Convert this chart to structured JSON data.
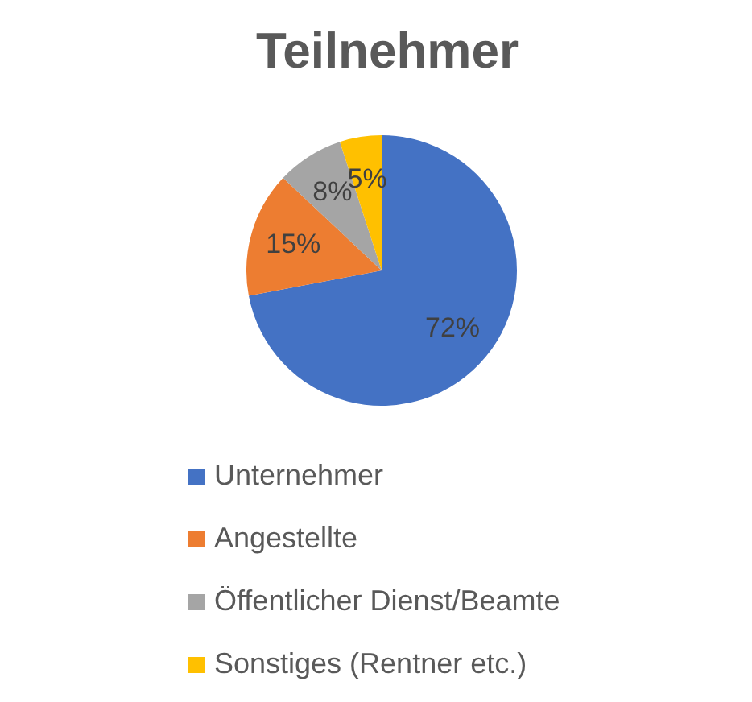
{
  "chart_data": {
    "type": "pie",
    "title": "Teilnehmer",
    "categories": [
      "Unternehmer",
      "Angestellte",
      "Öffentlicher Dienst/Beamte",
      "Sonstiges (Rentner etc.)"
    ],
    "values": [
      72,
      15,
      8,
      5
    ],
    "colors": [
      "#4472c4",
      "#ed7d31",
      "#a5a5a5",
      "#ffc000"
    ],
    "value_labels": [
      "72%",
      "15%",
      "8%",
      "5%"
    ],
    "legend": "bottom"
  }
}
